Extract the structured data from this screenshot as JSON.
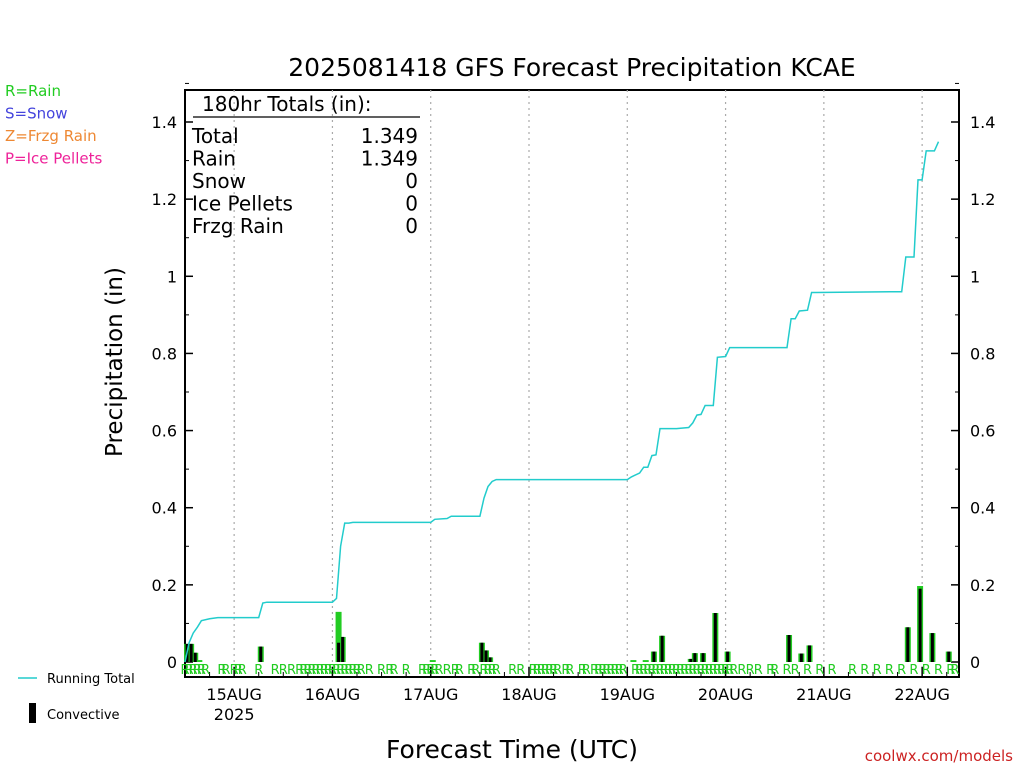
{
  "chart_data": {
    "type": "bar",
    "title": "2025081418 GFS Forecast Precipitation KCAE",
    "xlabel": "Forecast Time (UTC)",
    "ylabel": "Precipitation (in)",
    "ylim": [
      0,
      1.5
    ],
    "xlim_hours": [
      -6,
      183
    ],
    "y_ticks": [
      0,
      0.2,
      0.4,
      0.6,
      0.8,
      1,
      1.2,
      1.4
    ],
    "y_tick_labels": [
      "0",
      "0.2",
      "0.4",
      "0.6",
      "0.8",
      "1",
      "1.2",
      "1.4"
    ],
    "x_ticks": [
      {
        "label": "15AUG",
        "sub": "2025",
        "hour": 6
      },
      {
        "label": "16AUG",
        "sub": "",
        "hour": 30
      },
      {
        "label": "17AUG",
        "sub": "",
        "hour": 54
      },
      {
        "label": "18AUG",
        "sub": "",
        "hour": 78
      },
      {
        "label": "19AUG",
        "sub": "",
        "hour": 102
      },
      {
        "label": "20AUG",
        "sub": "",
        "hour": 126
      },
      {
        "label": "21AUG",
        "sub": "",
        "hour": 150
      },
      {
        "label": "22AUG",
        "sub": "",
        "hour": 174
      }
    ],
    "grid": "vertical-dotted-at-day-boundaries",
    "totals_box": {
      "heading": "180hr Totals (in):",
      "rows": [
        {
          "label": "Total",
          "value": "1.349"
        },
        {
          "label": "Rain",
          "value": "1.349"
        },
        {
          "label": "Snow",
          "value": "0"
        },
        {
          "label": "Ice Pellets",
          "value": "0"
        },
        {
          "label": "Frzg Rain",
          "value": "0"
        }
      ]
    },
    "type_legend": [
      {
        "text": "R=Rain",
        "color": "#22cc22"
      },
      {
        "text": "S=Snow",
        "color": "#4444dd"
      },
      {
        "text": "Z=Frzg Rain",
        "color": "#ee8833"
      },
      {
        "text": "P=Ice Pellets",
        "color": "#ee2299"
      }
    ],
    "series_legend": [
      {
        "name": "Running Total",
        "color": "#22cccc",
        "symbol": "line"
      },
      {
        "name": "Convective",
        "color": "#000000",
        "symbol": "bar"
      }
    ],
    "series": [
      {
        "name": "Running Total",
        "color": "#22cccc",
        "points": [
          [
            -6,
            0
          ],
          [
            -5,
            0.05
          ],
          [
            -4,
            0.075
          ],
          [
            -3,
            0.09
          ],
          [
            -2,
            0.107
          ],
          [
            0,
            0.112
          ],
          [
            2,
            0.115
          ],
          [
            8,
            0.115
          ],
          [
            12,
            0.115
          ],
          [
            13,
            0.153
          ],
          [
            14,
            0.155
          ],
          [
            30,
            0.155
          ],
          [
            31,
            0.165
          ],
          [
            32,
            0.3
          ],
          [
            33,
            0.36
          ],
          [
            34,
            0.36
          ],
          [
            35,
            0.362
          ],
          [
            54,
            0.362
          ],
          [
            55,
            0.37
          ],
          [
            58,
            0.372
          ],
          [
            59,
            0.378
          ],
          [
            62,
            0.378
          ],
          [
            66,
            0.378
          ],
          [
            67,
            0.425
          ],
          [
            68,
            0.455
          ],
          [
            69,
            0.468
          ],
          [
            70,
            0.473
          ],
          [
            102,
            0.473
          ],
          [
            103,
            0.48
          ],
          [
            105,
            0.49
          ],
          [
            106,
            0.505
          ],
          [
            107,
            0.505
          ],
          [
            108,
            0.535
          ],
          [
            109,
            0.537
          ],
          [
            110,
            0.605
          ],
          [
            114,
            0.605
          ],
          [
            117,
            0.608
          ],
          [
            118,
            0.62
          ],
          [
            119,
            0.64
          ],
          [
            120,
            0.642
          ],
          [
            121,
            0.665
          ],
          [
            123,
            0.665
          ],
          [
            124,
            0.79
          ],
          [
            126,
            0.792
          ],
          [
            127,
            0.815
          ],
          [
            129,
            0.815
          ],
          [
            141,
            0.815
          ],
          [
            142,
            0.89
          ],
          [
            143,
            0.89
          ],
          [
            144,
            0.91
          ],
          [
            146,
            0.912
          ],
          [
            147,
            0.958
          ],
          [
            148,
            0.958
          ],
          [
            168,
            0.96
          ],
          [
            169,
            0.96
          ],
          [
            170,
            1.05
          ],
          [
            172,
            1.05
          ],
          [
            173,
            1.25
          ],
          [
            174,
            1.25
          ],
          [
            175,
            1.325
          ],
          [
            177,
            1.325
          ],
          [
            178,
            1.349
          ]
        ]
      },
      {
        "name": "Precipitation",
        "color": "#22cc22",
        "bars": [
          [
            -5.5,
            0.047
          ],
          [
            -4.5,
            0.047
          ],
          [
            -3.5,
            0.024
          ],
          [
            -2.5,
            0.005
          ],
          [
            12.5,
            0.04
          ],
          [
            31.5,
            0.13
          ],
          [
            32.5,
            0.065
          ],
          [
            54.5,
            0.005
          ],
          [
            66.5,
            0.05
          ],
          [
            67.5,
            0.03
          ],
          [
            68.5,
            0.012
          ],
          [
            103.5,
            0.005
          ],
          [
            106.5,
            0.005
          ],
          [
            108.5,
            0.027
          ],
          [
            110.5,
            0.068
          ],
          [
            117.5,
            0.008
          ],
          [
            118.5,
            0.023
          ],
          [
            120.5,
            0.023
          ],
          [
            123.5,
            0.127
          ],
          [
            126.5,
            0.027
          ],
          [
            141.5,
            0.07
          ],
          [
            144.5,
            0.022
          ],
          [
            146.5,
            0.043
          ],
          [
            170.5,
            0.09
          ],
          [
            173.5,
            0.197
          ],
          [
            176.5,
            0.075
          ],
          [
            180.5,
            0.027
          ]
        ]
      },
      {
        "name": "Convective",
        "color": "#000000",
        "bars": [
          [
            -5.5,
            0.047
          ],
          [
            -4.5,
            0.047
          ],
          [
            -3.5,
            0.024
          ],
          [
            12.5,
            0.04
          ],
          [
            31.5,
            0.05
          ],
          [
            32.5,
            0.065
          ],
          [
            66.5,
            0.05
          ],
          [
            67.5,
            0.03
          ],
          [
            68.5,
            0.012
          ],
          [
            108.5,
            0.027
          ],
          [
            110.5,
            0.068
          ],
          [
            117.5,
            0.008
          ],
          [
            118.5,
            0.023
          ],
          [
            120.5,
            0.023
          ],
          [
            123.5,
            0.127
          ],
          [
            126.5,
            0.027
          ],
          [
            141.5,
            0.07
          ],
          [
            144.5,
            0.022
          ],
          [
            146.5,
            0.043
          ],
          [
            170.5,
            0.09
          ],
          [
            173.5,
            0.19
          ],
          [
            176.5,
            0.075
          ],
          [
            180.5,
            0.027
          ]
        ]
      }
    ],
    "type_markers": {
      "label": "R",
      "color": "#22cc22",
      "hours": [
        -6,
        -5,
        -4,
        -3,
        -2,
        -1,
        3,
        4,
        6,
        7,
        8,
        12,
        16,
        18,
        20,
        22,
        23,
        24,
        25,
        26,
        27,
        28,
        29,
        30,
        31,
        32,
        33,
        34,
        35,
        36,
        37,
        39,
        42,
        44,
        45,
        48,
        52,
        53,
        54,
        55,
        56,
        58,
        60,
        61,
        64,
        65,
        67,
        68,
        69,
        70,
        74,
        76,
        79,
        80,
        81,
        82,
        83,
        84,
        85,
        87,
        88,
        91,
        92,
        94,
        95,
        96,
        97,
        98,
        99,
        100,
        101,
        104,
        105,
        106,
        107,
        108,
        109,
        110,
        111,
        112,
        113,
        114,
        115,
        116,
        117,
        118,
        119,
        120,
        121,
        122,
        123,
        124,
        125,
        126,
        127,
        128,
        130,
        132,
        134,
        137,
        138,
        141,
        143,
        146,
        149,
        152,
        157,
        160,
        163,
        166,
        169,
        172,
        175,
        178,
        181,
        182
      ]
    },
    "credit": "coolwx.com/models"
  }
}
